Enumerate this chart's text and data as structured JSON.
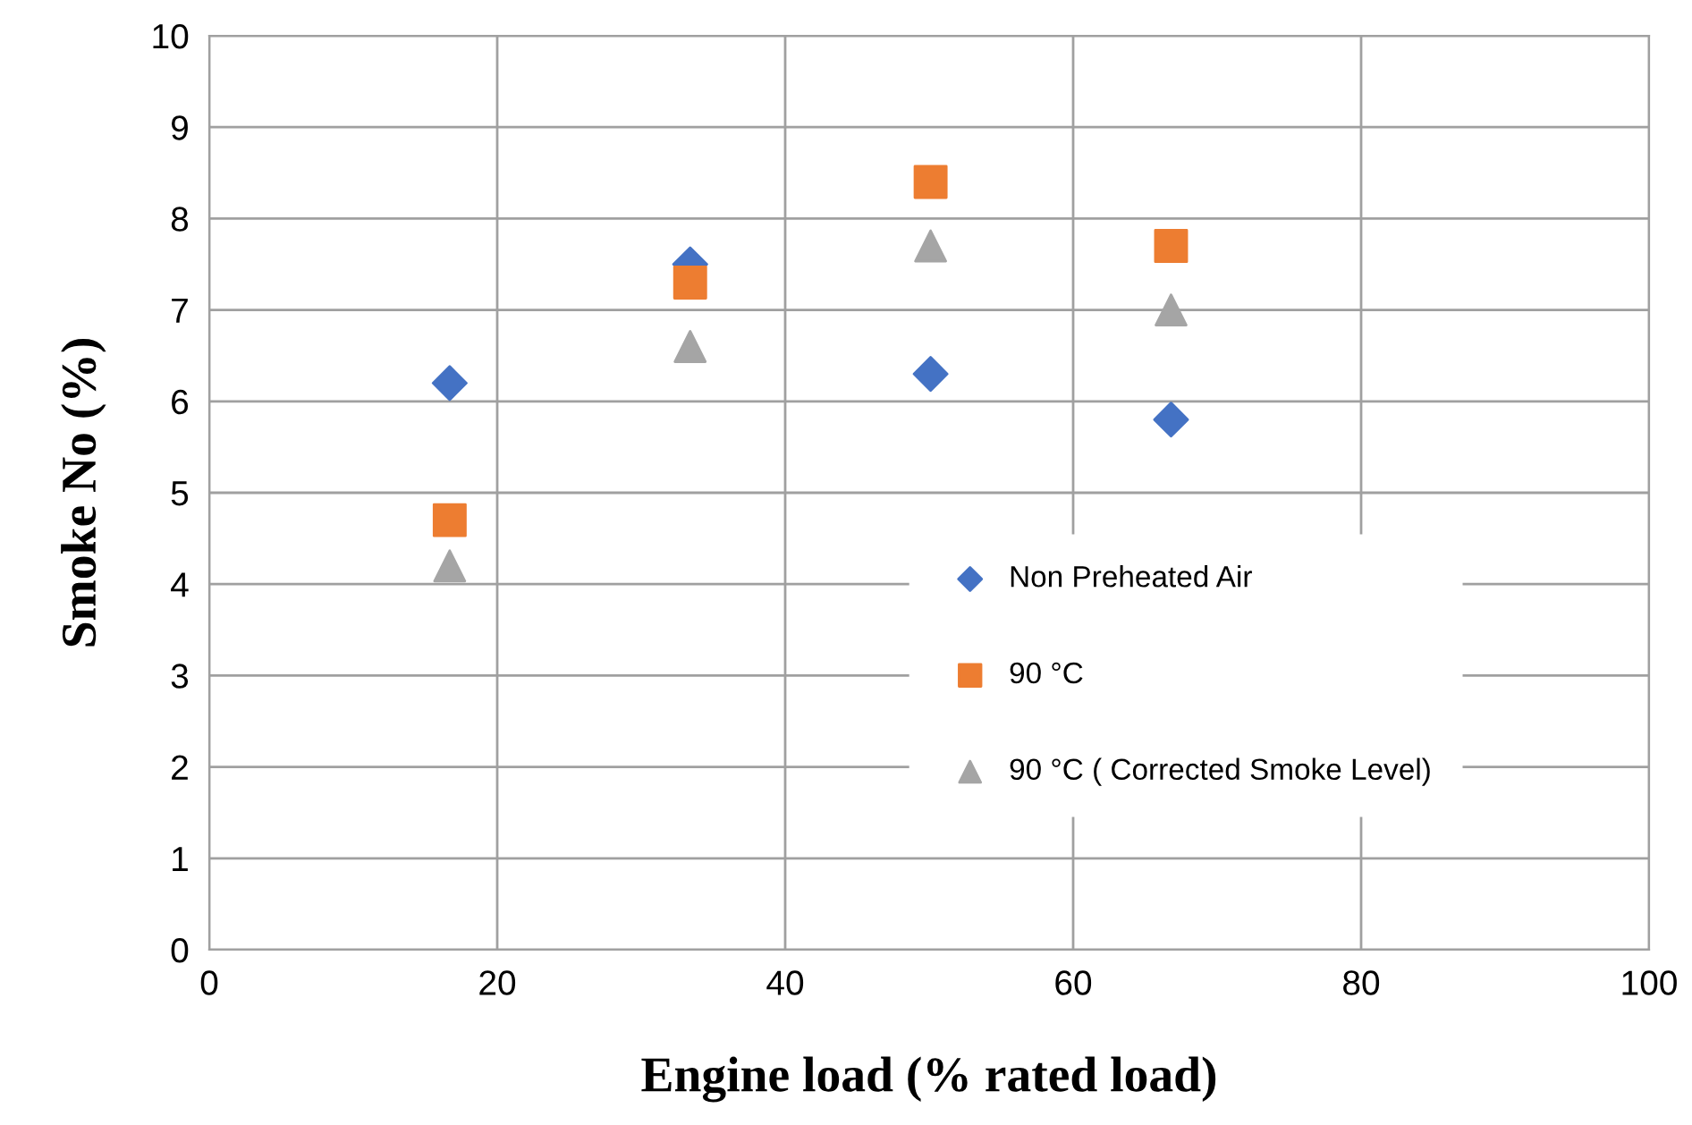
{
  "chart_data": {
    "type": "scatter",
    "xlabel": "Engine load (% rated load)",
    "ylabel": "Smoke No (%)",
    "x": [
      16.7,
      33.4,
      50.1,
      66.8
    ],
    "series": [
      {
        "name": "Non Preheated Air",
        "color": "#4472c4",
        "marker": "diamond",
        "values": [
          6.2,
          7.5,
          6.3,
          5.8
        ]
      },
      {
        "name": "90 °C",
        "color": "#ed7d31",
        "marker": "square",
        "values": [
          4.7,
          7.3,
          8.4,
          7.7
        ]
      },
      {
        "name": "90 °C ( Corrected Smoke Level)",
        "color": "#a5a5a5",
        "marker": "triangle",
        "values": [
          4.2,
          6.6,
          7.7,
          7.0
        ]
      }
    ],
    "xlim": [
      0,
      100
    ],
    "xticks": [
      0,
      20,
      40,
      60,
      80,
      100
    ],
    "ylim": [
      0,
      10
    ],
    "yticks": [
      0,
      1,
      2,
      3,
      4,
      5,
      6,
      7,
      8,
      9,
      10
    ],
    "grid": true,
    "legend": "right"
  }
}
